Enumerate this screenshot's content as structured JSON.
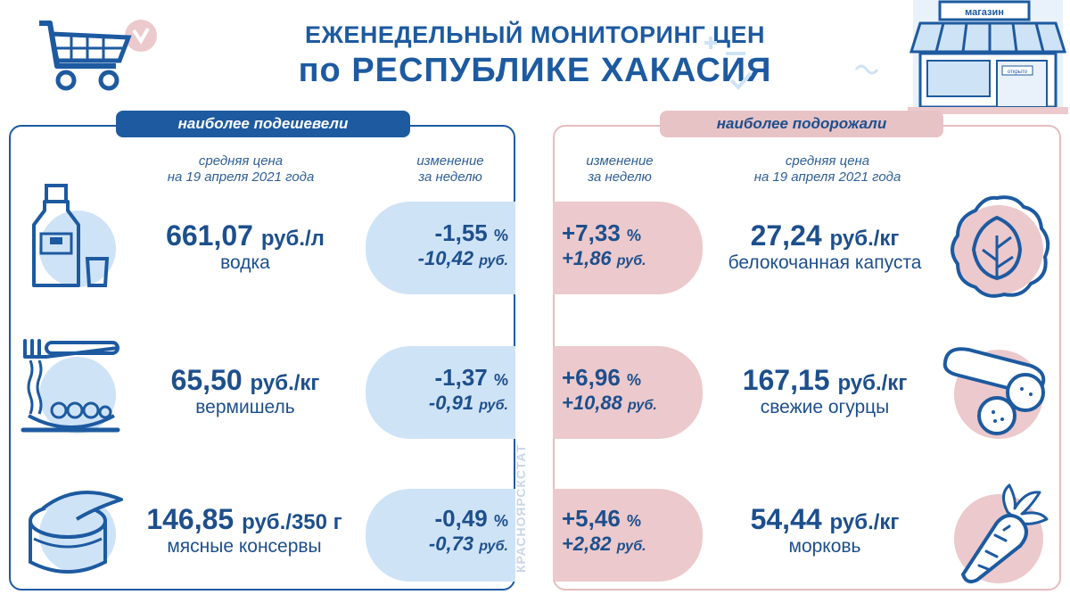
{
  "header": {
    "title_line1": "ЕЖЕНЕДЕЛЬНЫЙ МОНИТОРИНГ ЦЕН",
    "title_line2": "по РЕСПУБЛИКЕ ХАКАСИЯ",
    "store_sign": "магазин",
    "store_door_sign": "открыто"
  },
  "left": {
    "tab": "наиболее подешевели",
    "col_price_header": "средняя цена\nна 19 апреля 2021 года",
    "col_change_header": "изменение\nза неделю",
    "items": [
      {
        "price": "661,07",
        "unit": "руб./л",
        "name": "водка",
        "pct": "-1,55",
        "pct_sign": "%",
        "rub": "-10,42",
        "rub_unit": "руб.",
        "icon": "vodka-bottle-icon"
      },
      {
        "price": "65,50",
        "unit": "руб./кг",
        "name": "вермишель",
        "pct": "-1,37",
        "pct_sign": "%",
        "rub": "-0,91",
        "rub_unit": "руб.",
        "icon": "noodles-icon"
      },
      {
        "price": "146,85",
        "unit": "руб./350 г",
        "name": "мясные консервы",
        "pct": "-0,49",
        "pct_sign": "%",
        "rub": "-0,73",
        "rub_unit": "руб.",
        "icon": "canned-meat-icon"
      }
    ]
  },
  "right": {
    "tab": "наиболее подорожали",
    "col_change_header": "изменение\nза неделю",
    "col_price_header": "средняя цена\nна 19 апреля 2021 года",
    "items": [
      {
        "price": "27,24",
        "unit": "руб./кг",
        "name": "белокочанная капуста",
        "pct": "+7,33",
        "pct_sign": "%",
        "rub": "+1,86",
        "rub_unit": "руб.",
        "icon": "cabbage-icon"
      },
      {
        "price": "167,15",
        "unit": "руб./кг",
        "name": "свежие огурцы",
        "pct": "+6,96",
        "pct_sign": "%",
        "rub": "+10,88",
        "rub_unit": "руб.",
        "icon": "cucumber-icon"
      },
      {
        "price": "54,44",
        "unit": "руб./кг",
        "name": "морковь",
        "pct": "+5,46",
        "pct_sign": "%",
        "rub": "+2,82",
        "rub_unit": "руб.",
        "icon": "carrot-icon"
      }
    ]
  },
  "watermark": "КРАСНОЯРСКСТАТ",
  "colors": {
    "blue": "#1d5aa0",
    "light_blue": "#cfe3f7",
    "pink": "#ecc9cc"
  }
}
